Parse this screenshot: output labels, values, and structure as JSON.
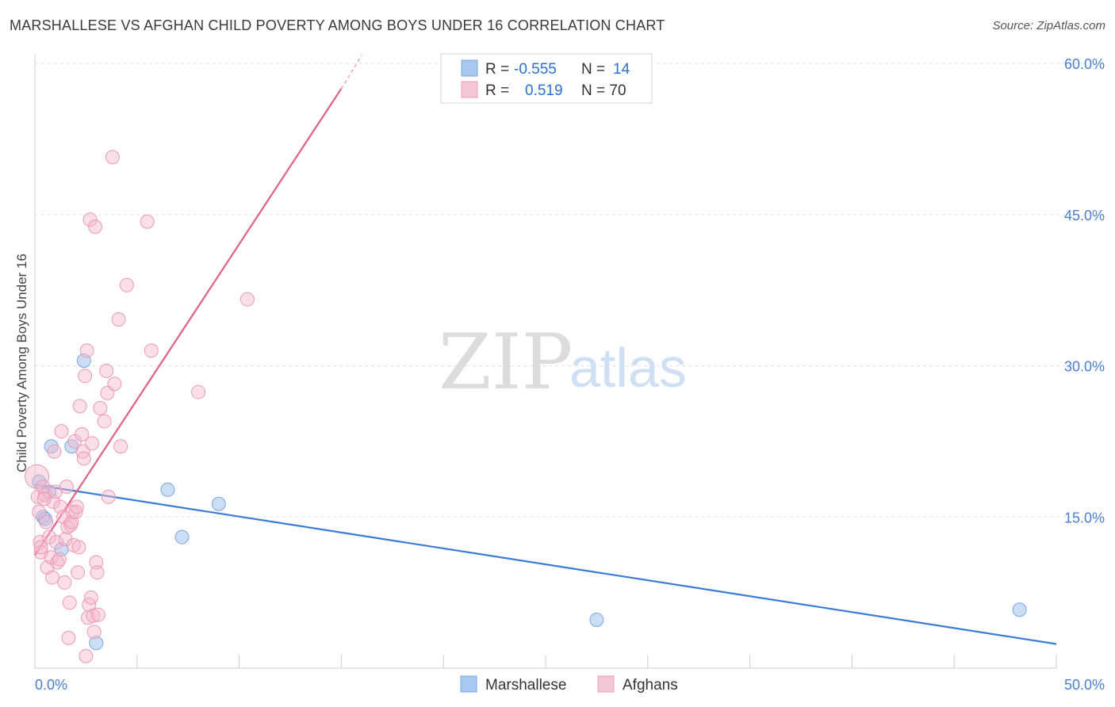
{
  "header": {
    "title": "MARSHALLESE VS AFGHAN CHILD POVERTY AMONG BOYS UNDER 16 CORRELATION CHART",
    "source": "Source: ZipAtlas.com"
  },
  "watermark": {
    "part1": "ZIP",
    "part2": "atlas"
  },
  "legend": {
    "rows": [
      {
        "r_label": "R =",
        "r_value": "-0.555",
        "n_label": "N =",
        "n_value": "14",
        "color": "#a9c8f0"
      },
      {
        "r_label": "R =",
        "r_value": "0.519",
        "n_label": "N = 70",
        "n_value": "",
        "color": "#f5b8cc"
      }
    ]
  },
  "bottom_legend": [
    {
      "label": "Marshallese",
      "color": "#a9c8f0"
    },
    {
      "label": "Afghans",
      "color": "#f5b8cc"
    }
  ],
  "chart_data": {
    "type": "scatter",
    "title": "MARSHALLESE VS AFGHAN CHILD POVERTY AMONG BOYS UNDER 16 CORRELATION CHART",
    "ylabel": "Child Poverty Among Boys Under 16",
    "xlabel": "",
    "xlim": [
      0,
      50
    ],
    "ylim": [
      0,
      60
    ],
    "x_tick_labels": [
      "0.0%",
      "50.0%"
    ],
    "y_ticks": [
      15,
      30,
      45,
      60
    ],
    "y_tick_labels": [
      "15.0%",
      "30.0%",
      "45.0%",
      "60.0%"
    ],
    "series": [
      {
        "name": "Marshallese",
        "color": "#3a7bd5",
        "fill": "#a9c8f0",
        "points": [
          [
            0.2,
            18.5
          ],
          [
            0.4,
            15.0
          ],
          [
            0.7,
            17.5
          ],
          [
            0.8,
            22.0
          ],
          [
            1.8,
            22.0
          ],
          [
            0.5,
            14.8
          ],
          [
            1.3,
            11.8
          ],
          [
            2.4,
            30.5
          ],
          [
            3.0,
            2.5
          ],
          [
            6.5,
            17.7
          ],
          [
            7.2,
            13.0
          ],
          [
            9.0,
            16.3
          ],
          [
            27.5,
            4.8
          ],
          [
            48.2,
            5.8
          ]
        ],
        "trend": {
          "x": [
            0,
            50
          ],
          "y": [
            18.2,
            2.4
          ]
        }
      },
      {
        "name": "Afghans",
        "color": "#e0608a",
        "fill": "#f5b8cc",
        "points": [
          [
            0.1,
            19.0
          ],
          [
            0.15,
            17.0
          ],
          [
            0.2,
            15.5
          ],
          [
            0.25,
            12.5
          ],
          [
            0.3,
            11.5
          ],
          [
            0.4,
            18.0
          ],
          [
            0.5,
            17.2
          ],
          [
            0.55,
            14.5
          ],
          [
            0.6,
            10.0
          ],
          [
            0.7,
            13.0
          ],
          [
            0.8,
            11.0
          ],
          [
            0.85,
            9.0
          ],
          [
            0.9,
            16.5
          ],
          [
            0.95,
            21.5
          ],
          [
            1.0,
            17.5
          ],
          [
            1.05,
            12.5
          ],
          [
            1.1,
            10.5
          ],
          [
            1.2,
            10.8
          ],
          [
            1.25,
            16.0
          ],
          [
            1.3,
            23.5
          ],
          [
            1.4,
            15.0
          ],
          [
            1.45,
            8.5
          ],
          [
            1.5,
            12.8
          ],
          [
            1.55,
            18.0
          ],
          [
            1.6,
            14.0
          ],
          [
            1.65,
            3.0
          ],
          [
            1.7,
            6.5
          ],
          [
            1.75,
            14.2
          ],
          [
            1.8,
            14.5
          ],
          [
            1.85,
            15.5
          ],
          [
            1.9,
            12.2
          ],
          [
            1.95,
            22.5
          ],
          [
            2.0,
            15.5
          ],
          [
            2.05,
            16.0
          ],
          [
            2.1,
            9.5
          ],
          [
            2.15,
            12.0
          ],
          [
            2.2,
            26.0
          ],
          [
            2.3,
            23.2
          ],
          [
            2.35,
            21.5
          ],
          [
            2.4,
            20.8
          ],
          [
            2.45,
            29.0
          ],
          [
            2.5,
            1.2
          ],
          [
            2.55,
            31.5
          ],
          [
            2.6,
            5.0
          ],
          [
            2.65,
            6.3
          ],
          [
            2.7,
            44.5
          ],
          [
            2.75,
            7.0
          ],
          [
            2.8,
            22.3
          ],
          [
            2.85,
            5.2
          ],
          [
            2.9,
            3.6
          ],
          [
            2.95,
            43.8
          ],
          [
            3.0,
            10.5
          ],
          [
            3.05,
            9.5
          ],
          [
            3.1,
            5.3
          ],
          [
            3.2,
            25.8
          ],
          [
            3.4,
            24.5
          ],
          [
            3.5,
            29.5
          ],
          [
            3.55,
            27.3
          ],
          [
            3.6,
            17.0
          ],
          [
            3.9,
            28.2
          ],
          [
            4.1,
            34.6
          ],
          [
            4.2,
            22.0
          ],
          [
            4.5,
            38.0
          ],
          [
            3.8,
            50.7
          ],
          [
            5.5,
            44.3
          ],
          [
            5.7,
            31.5
          ],
          [
            8.0,
            27.4
          ],
          [
            10.4,
            36.6
          ],
          [
            0.3,
            12.0
          ],
          [
            0.45,
            16.8
          ]
        ],
        "trend": {
          "x": [
            0,
            15.0
          ],
          "y": [
            11.2,
            57.5
          ],
          "dashed_to": {
            "x": 16.0,
            "y": 60.8
          }
        }
      }
    ]
  }
}
